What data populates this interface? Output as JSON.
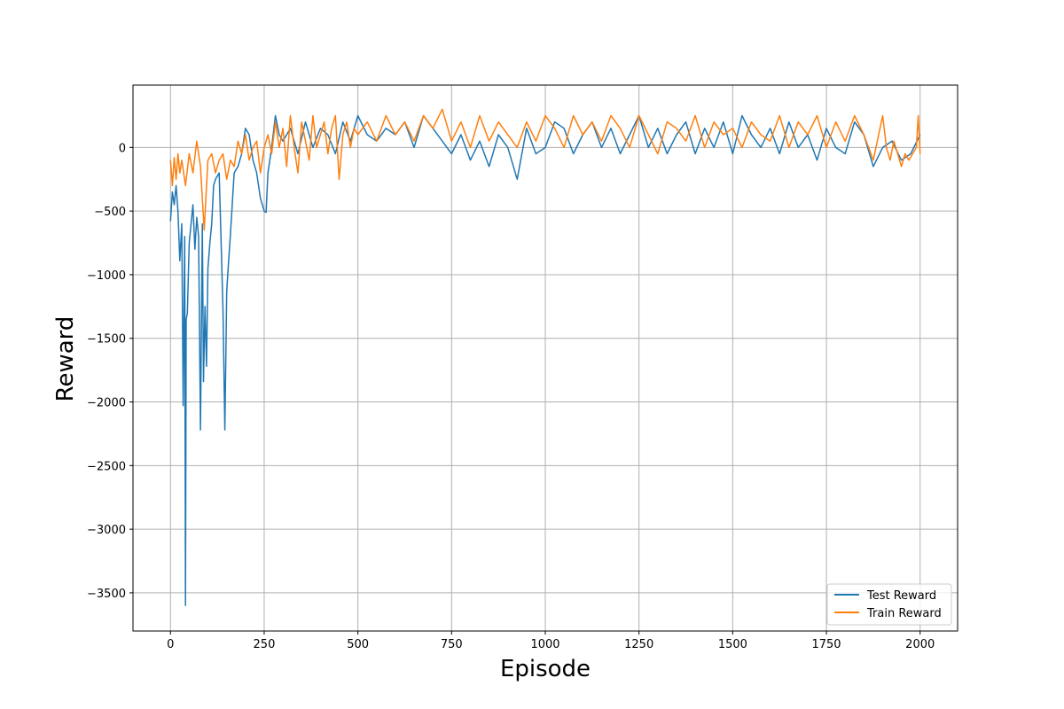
{
  "chart_data": {
    "type": "line",
    "title": "",
    "xlabel": "Episode",
    "ylabel": "Reward",
    "xlim": [
      -100,
      2100
    ],
    "ylim": [
      -3800,
      490
    ],
    "xticks": [
      0,
      250,
      500,
      750,
      1000,
      1250,
      1500,
      1750,
      2000
    ],
    "xtick_labels": [
      "0",
      "250",
      "500",
      "750",
      "1000",
      "1250",
      "1500",
      "1750",
      "2000"
    ],
    "yticks": [
      0,
      -500,
      -1000,
      -1500,
      -2000,
      -2500,
      -3000,
      -3500
    ],
    "ytick_labels": [
      "0",
      "−500",
      "−1000",
      "−1500",
      "−2000",
      "−2500",
      "−3000",
      "−3500"
    ],
    "grid": true,
    "legend_position": "lower-right",
    "series": [
      {
        "name": "Test Reward",
        "color": "#1f77b4",
        "x": [
          0,
          5,
          10,
          15,
          20,
          25,
          30,
          34,
          38,
          40,
          42,
          45,
          50,
          55,
          60,
          65,
          70,
          75,
          80,
          85,
          88,
          92,
          96,
          100,
          105,
          110,
          115,
          120,
          130,
          140,
          145,
          150,
          155,
          160,
          170,
          180,
          190,
          200,
          210,
          220,
          230,
          240,
          250,
          255,
          260,
          270,
          280,
          290,
          300,
          320,
          340,
          360,
          380,
          400,
          420,
          440,
          460,
          480,
          500,
          525,
          550,
          575,
          600,
          625,
          650,
          675,
          700,
          725,
          750,
          775,
          800,
          825,
          850,
          875,
          900,
          925,
          950,
          975,
          1000,
          1025,
          1050,
          1075,
          1100,
          1125,
          1150,
          1175,
          1200,
          1225,
          1250,
          1275,
          1300,
          1325,
          1350,
          1375,
          1400,
          1425,
          1450,
          1475,
          1500,
          1525,
          1550,
          1575,
          1600,
          1625,
          1650,
          1675,
          1700,
          1725,
          1750,
          1775,
          1800,
          1825,
          1850,
          1875,
          1900,
          1925,
          1950,
          1975,
          2000
        ],
        "values": [
          -580,
          -350,
          -450,
          -300,
          -500,
          -890,
          -600,
          -2030,
          -700,
          -3600,
          -1350,
          -1300,
          -750,
          -600,
          -450,
          -800,
          -550,
          -700,
          -2220,
          -600,
          -1840,
          -1250,
          -1720,
          -950,
          -750,
          -600,
          -300,
          -250,
          -200,
          -1280,
          -2220,
          -1130,
          -900,
          -680,
          -200,
          -150,
          -50,
          150,
          100,
          -100,
          -200,
          -400,
          -500,
          -510,
          -200,
          0,
          250,
          100,
          50,
          150,
          -50,
          200,
          0,
          150,
          100,
          -50,
          200,
          50,
          250,
          100,
          50,
          150,
          100,
          200,
          0,
          250,
          150,
          50,
          -50,
          100,
          -100,
          50,
          -150,
          100,
          0,
          -250,
          150,
          -50,
          0,
          200,
          150,
          -50,
          100,
          200,
          0,
          150,
          -50,
          100,
          250,
          0,
          150,
          -50,
          100,
          200,
          -50,
          150,
          0,
          200,
          -50,
          250,
          100,
          0,
          150,
          -50,
          200,
          0,
          100,
          -100,
          150,
          0,
          -50,
          200,
          100,
          -150,
          0,
          50,
          -100,
          -50,
          100
        ]
      },
      {
        "name": "Train Reward",
        "color": "#ff7f0e",
        "x": [
          0,
          5,
          10,
          15,
          20,
          25,
          30,
          40,
          50,
          60,
          70,
          80,
          90,
          100,
          110,
          120,
          130,
          140,
          150,
          160,
          170,
          180,
          190,
          200,
          210,
          220,
          230,
          240,
          250,
          260,
          270,
          280,
          290,
          300,
          310,
          320,
          330,
          340,
          350,
          360,
          370,
          380,
          390,
          400,
          410,
          420,
          430,
          440,
          450,
          460,
          470,
          480,
          490,
          500,
          525,
          550,
          575,
          600,
          625,
          650,
          675,
          700,
          725,
          750,
          775,
          800,
          825,
          850,
          875,
          900,
          925,
          950,
          975,
          1000,
          1025,
          1050,
          1075,
          1100,
          1125,
          1150,
          1175,
          1200,
          1225,
          1250,
          1275,
          1300,
          1325,
          1350,
          1375,
          1400,
          1425,
          1450,
          1475,
          1500,
          1525,
          1550,
          1575,
          1600,
          1625,
          1650,
          1675,
          1700,
          1725,
          1750,
          1775,
          1800,
          1825,
          1850,
          1875,
          1900,
          1910,
          1920,
          1930,
          1940,
          1950,
          1960,
          1970,
          1980,
          1990,
          1995,
          2000
        ],
        "values": [
          -100,
          -300,
          -80,
          -250,
          -50,
          -200,
          -100,
          -300,
          -50,
          -200,
          50,
          -150,
          -650,
          -100,
          -50,
          -200,
          -100,
          -50,
          -250,
          -100,
          -150,
          50,
          -50,
          100,
          -100,
          0,
          50,
          -200,
          0,
          100,
          -50,
          200,
          0,
          150,
          -150,
          250,
          0,
          -200,
          200,
          50,
          -100,
          250,
          0,
          100,
          200,
          -50,
          150,
          250,
          -250,
          100,
          200,
          0,
          150,
          100,
          200,
          50,
          250,
          100,
          200,
          50,
          250,
          150,
          300,
          50,
          200,
          0,
          250,
          50,
          200,
          100,
          0,
          200,
          50,
          250,
          150,
          0,
          250,
          100,
          200,
          50,
          250,
          150,
          0,
          250,
          100,
          -50,
          200,
          150,
          50,
          250,
          0,
          200,
          100,
          150,
          0,
          200,
          100,
          50,
          250,
          0,
          200,
          100,
          250,
          0,
          200,
          50,
          250,
          100,
          -100,
          250,
          0,
          -100,
          50,
          -50,
          -150,
          -50,
          -100,
          -50,
          0,
          250,
          -50
        ]
      }
    ]
  }
}
